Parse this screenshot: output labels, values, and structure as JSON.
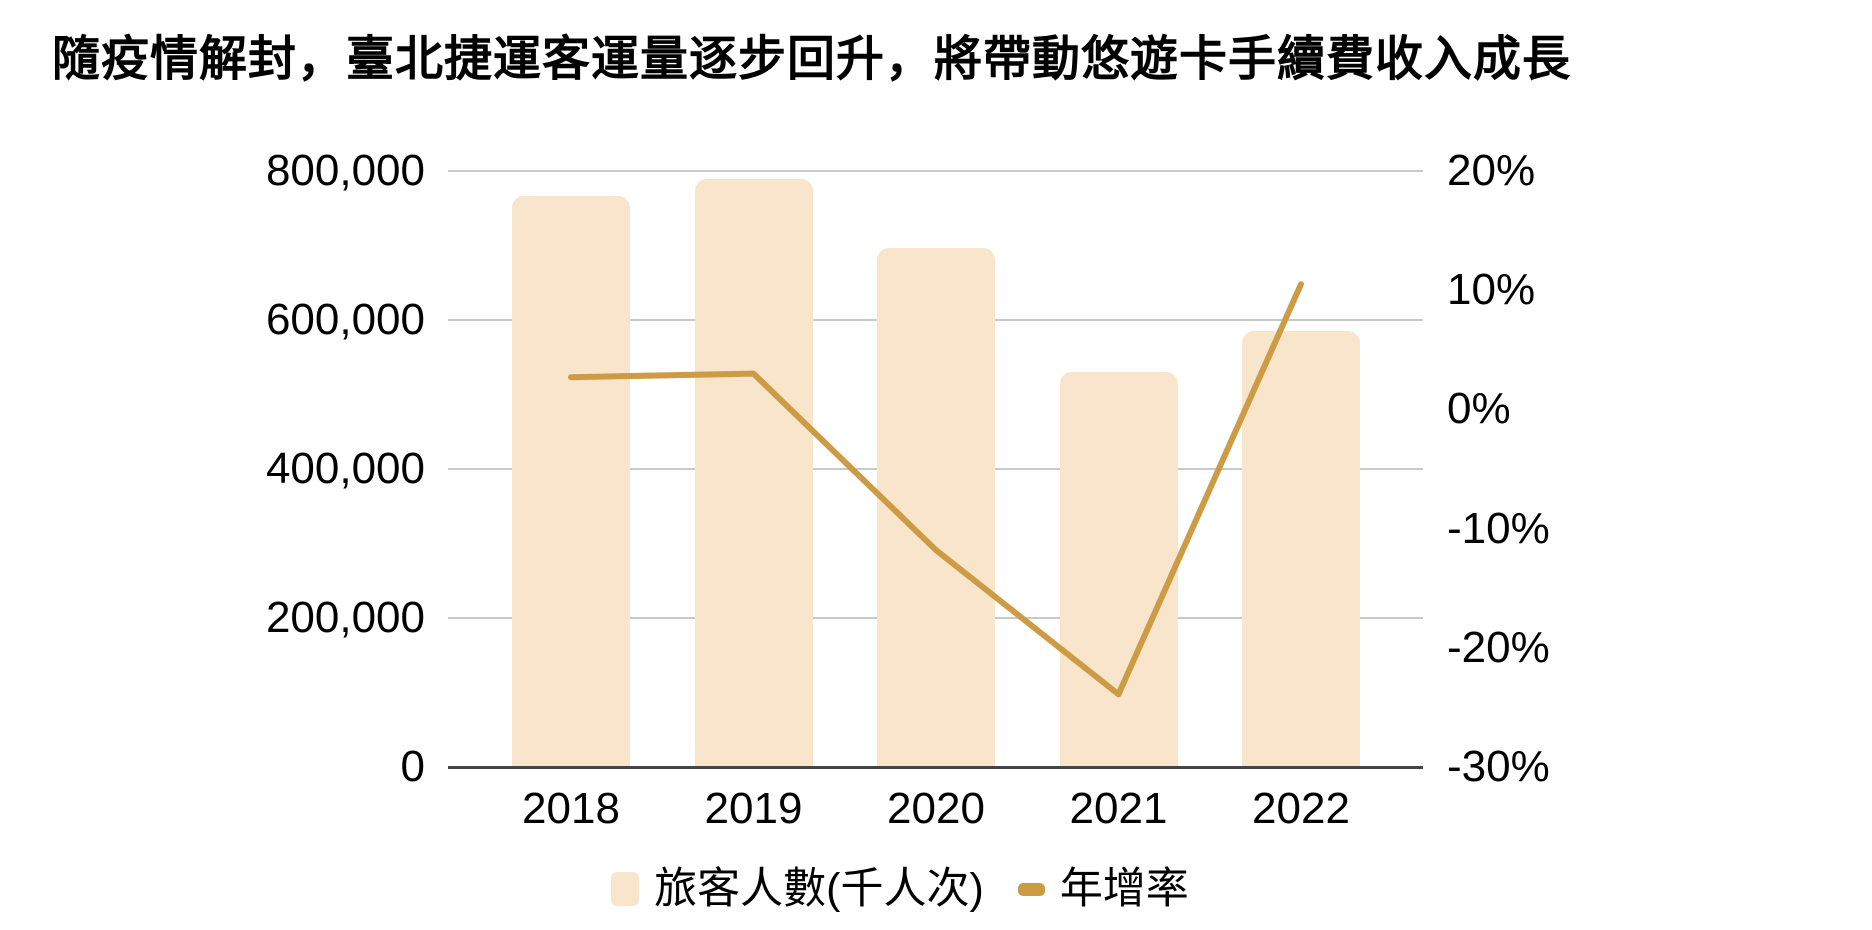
{
  "title": "隨疫情解封，臺北捷運客運量逐步回升，將帶動悠遊卡手續費收入成長",
  "chart_data": {
    "type": "combo_bar_line",
    "categories": [
      "2018",
      "2019",
      "2020",
      "2021",
      "2022"
    ],
    "series": [
      {
        "name": "旅客人數(千人次)",
        "type": "bar",
        "axis": "left",
        "values": [
          766000,
          789000,
          696000,
          530000,
          585000
        ]
      },
      {
        "name": "年增率",
        "type": "line",
        "axis": "right",
        "unit": "%",
        "values": [
          2.7,
          3.0,
          -11.8,
          -23.9,
          10.5
        ]
      }
    ],
    "left_axis": {
      "min": 0,
      "max": 800000,
      "tick_step": 200000,
      "tick_labels": [
        "0",
        "200,000",
        "400,000",
        "600,000",
        "800,000"
      ]
    },
    "right_axis": {
      "min": -30,
      "max": 20,
      "tick_step": 10,
      "tick_labels": [
        "-30%",
        "-20%",
        "-10%",
        "0%",
        "10%",
        "20%"
      ]
    },
    "grid": true,
    "legend_position": "bottom"
  },
  "legend": {
    "items": [
      {
        "label": "旅客人數(千人次)",
        "swatch": "bar"
      },
      {
        "label": "年增率",
        "swatch": "line"
      }
    ]
  },
  "colors": {
    "bar_fill": "#F8E5CC",
    "line": "#CE9B45",
    "gridline": "#C9C9C9",
    "axis_line": "#454545",
    "text": "#000000",
    "background": "#FFFFFF"
  }
}
